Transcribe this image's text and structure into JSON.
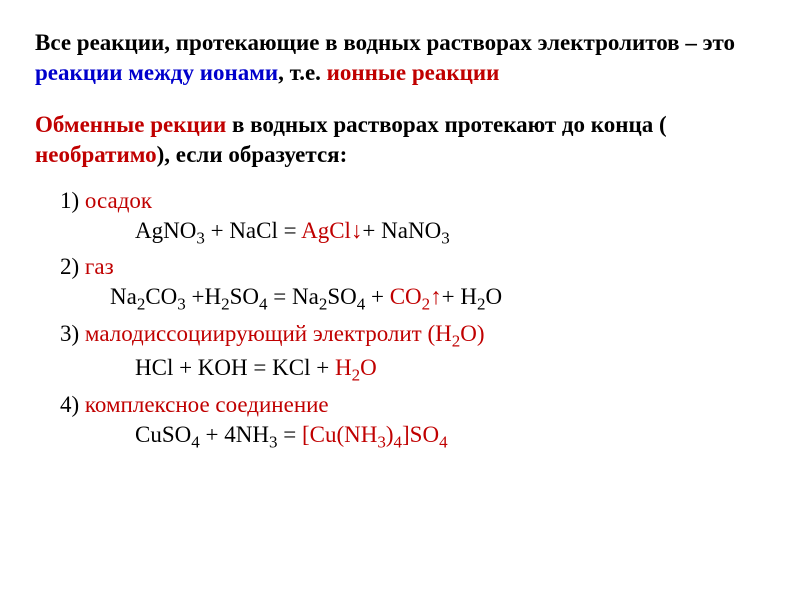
{
  "intro": {
    "part1": "Все реакции, протекающие в водных растворах электролитов – это ",
    "blue": "реакции между ионами",
    "part2": ", т.е. ",
    "red": "ионные реакции"
  },
  "exchange": {
    "red1": "Обменные рекции",
    "part1": " в водных растворах протекают до конца ( ",
    "red2": "необратимо",
    "part2": "), если образуется:"
  },
  "item1": {
    "num": "1) ",
    "label": "осадок"
  },
  "eq1": {
    "l1": "AgNO",
    "l2": " + NaCl = ",
    "prod": "AgCl↓",
    "l3": "+ NaNO"
  },
  "item2": {
    "num": "2) ",
    "label": "газ"
  },
  "eq2": {
    "l1": "Na",
    "l2": "CO",
    "l3": " +H",
    "l4": "SO",
    "l5": " = Na",
    "l6": "SO",
    "l7": " + ",
    "prod": "CO",
    "prodarrow": "↑",
    "l8": "+ H",
    "l9": "O"
  },
  "item3": {
    "num": "3) ",
    "label": "малодиссоциирующий электролит (H",
    "label2": "O)"
  },
  "eq3": {
    "l1": "HCl + KOH = KCl + ",
    "prod1": "H",
    "prod2": "O"
  },
  "item4": {
    "num": "4) ",
    "label": "комплексное соединение"
  },
  "eq4": {
    "l1": "CuSO",
    "l2": " + 4NH",
    "l3": " = ",
    "prod1": "[Cu(NH",
    "prod2": ")",
    "prod3": "]SO"
  },
  "subs": {
    "three": "3",
    "two": "2",
    "four": "4"
  },
  "colors": {
    "blue": "#0000cc",
    "red": "#c00000",
    "black": "#000000",
    "background": "#ffffff"
  },
  "fonts": {
    "family": "Times New Roman",
    "main_size": 23,
    "sub_size": 17
  }
}
